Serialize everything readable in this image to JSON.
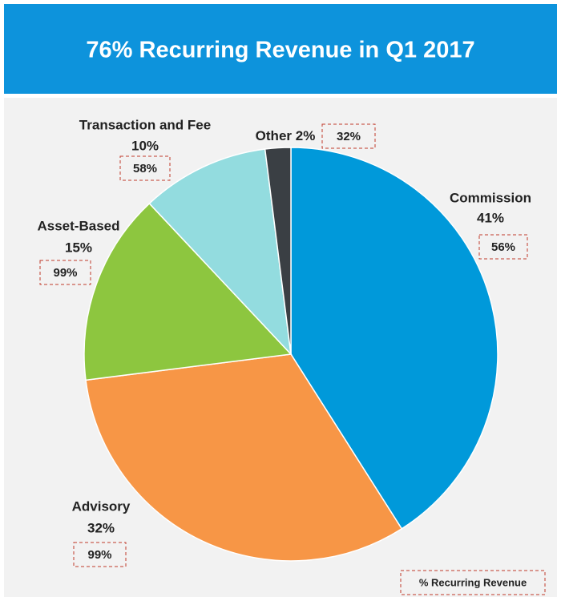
{
  "chart_data": {
    "type": "pie",
    "title": "76% Recurring Revenue in Q1 2017",
    "categories": [
      "Commission",
      "Advisory",
      "Asset-Based",
      "Transaction and Fee",
      "Other"
    ],
    "values": [
      41,
      32,
      15,
      10,
      2
    ],
    "value_labels": [
      "41%",
      "32%",
      "15%",
      "10%",
      "2%"
    ],
    "colors": [
      "#0099da",
      "#f79646",
      "#8dc63f",
      "#93dcdf",
      "#3a3f44"
    ],
    "recurring": {
      "title": "% Recurring Revenue",
      "values": [
        56,
        99,
        99,
        58,
        32
      ],
      "value_labels": [
        "56%",
        "99%",
        "99%",
        "58%",
        "32%"
      ]
    }
  }
}
